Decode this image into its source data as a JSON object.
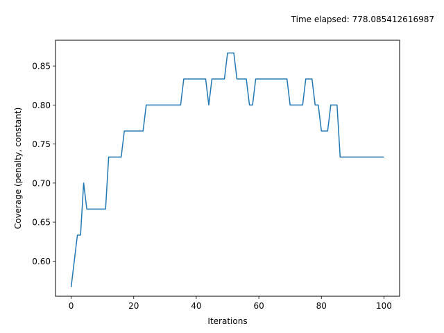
{
  "chart_data": {
    "type": "line",
    "title": "Time elapsed: 778.085412616987",
    "xlabel": "Iterations",
    "ylabel": "Coverage (penalty, constant)",
    "xlim": [
      -5,
      105
    ],
    "ylim": [
      0.555,
      0.883
    ],
    "xticks": [
      0,
      20,
      40,
      60,
      80,
      100
    ],
    "yticks": [
      0.6,
      0.65,
      0.7,
      0.75,
      0.8,
      0.85
    ],
    "xtick_labels": [
      "0",
      "20",
      "40",
      "60",
      "80",
      "100"
    ],
    "ytick_labels": [
      "0.60",
      "0.65",
      "0.70",
      "0.75",
      "0.80",
      "0.85"
    ],
    "grid": false,
    "series": [
      {
        "color": "#1f77b4",
        "x": [
          0,
          1,
          2,
          3,
          4,
          5,
          6,
          7,
          8,
          9,
          10,
          11,
          12,
          13,
          14,
          15,
          16,
          17,
          18,
          19,
          20,
          21,
          22,
          23,
          24,
          25,
          26,
          27,
          28,
          29,
          30,
          31,
          32,
          33,
          34,
          35,
          36,
          37,
          38,
          39,
          40,
          41,
          42,
          43,
          44,
          45,
          46,
          47,
          48,
          49,
          50,
          51,
          52,
          53,
          54,
          55,
          56,
          57,
          58,
          59,
          60,
          61,
          62,
          63,
          64,
          65,
          66,
          67,
          68,
          69,
          70,
          71,
          72,
          73,
          74,
          75,
          76,
          77,
          78,
          79,
          80,
          81,
          82,
          83,
          84,
          85,
          86,
          87,
          88,
          89,
          90,
          91,
          92,
          93,
          94,
          95,
          96,
          97,
          98,
          99,
          100
        ],
        "y": [
          0.5667,
          0.6,
          0.6333,
          0.6333,
          0.7,
          0.6667,
          0.6667,
          0.6667,
          0.6667,
          0.6667,
          0.6667,
          0.6667,
          0.7333,
          0.7333,
          0.7333,
          0.7333,
          0.7333,
          0.7667,
          0.7667,
          0.7667,
          0.7667,
          0.7667,
          0.7667,
          0.7667,
          0.8,
          0.8,
          0.8,
          0.8,
          0.8,
          0.8,
          0.8,
          0.8,
          0.8,
          0.8,
          0.8,
          0.8,
          0.8333,
          0.8333,
          0.8333,
          0.8333,
          0.8333,
          0.8333,
          0.8333,
          0.8333,
          0.8,
          0.8333,
          0.8333,
          0.8333,
          0.8333,
          0.8333,
          0.8667,
          0.8667,
          0.8667,
          0.8333,
          0.8333,
          0.8333,
          0.8333,
          0.8,
          0.8,
          0.8333,
          0.8333,
          0.8333,
          0.8333,
          0.8333,
          0.8333,
          0.8333,
          0.8333,
          0.8333,
          0.8333,
          0.8333,
          0.8,
          0.8,
          0.8,
          0.8,
          0.8,
          0.8333,
          0.8333,
          0.8333,
          0.8,
          0.8,
          0.7667,
          0.7667,
          0.7667,
          0.8,
          0.8,
          0.8,
          0.7333,
          0.7333,
          0.7333,
          0.7333,
          0.7333,
          0.7333,
          0.7333,
          0.7333,
          0.7333,
          0.7333,
          0.7333,
          0.7333,
          0.7333,
          0.7333,
          0.7333
        ]
      }
    ]
  }
}
